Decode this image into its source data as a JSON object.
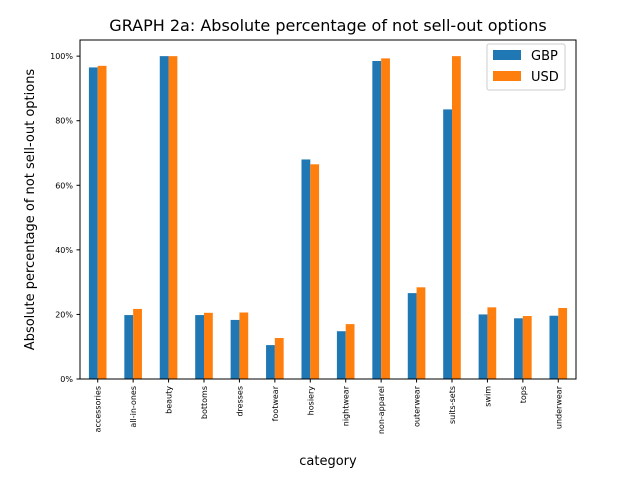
{
  "chart_data": {
    "type": "bar",
    "title": "GRAPH 2a: Absolute percentage of not sell-out options",
    "xlabel": "category",
    "ylabel": "Absolute percentage of not sell-out options",
    "ylim": [
      0,
      1.05
    ],
    "yticks": [
      0,
      0.2,
      0.4,
      0.6,
      0.8,
      1.0
    ],
    "ytick_labels": [
      "0%",
      "20%",
      "40%",
      "60%",
      "80%",
      "100%"
    ],
    "categories": [
      "accessories",
      "all-in-ones",
      "beauty",
      "bottoms",
      "dresses",
      "footwear",
      "hosiery",
      "nightwear",
      "non-apparel",
      "outerwear",
      "suits-sets",
      "swim",
      "tops",
      "underwear"
    ],
    "series": [
      {
        "name": "GBP",
        "color": "#1f77b4",
        "values": [
          0.965,
          0.198,
          1.0,
          0.198,
          0.183,
          0.105,
          0.68,
          0.148,
          0.985,
          0.266,
          0.835,
          0.2,
          0.188,
          0.196
        ]
      },
      {
        "name": "USD",
        "color": "#ff7f0e",
        "values": [
          0.97,
          0.217,
          1.0,
          0.205,
          0.206,
          0.127,
          0.665,
          0.17,
          0.993,
          0.284,
          1.0,
          0.222,
          0.195,
          0.22
        ]
      }
    ],
    "grid": false,
    "legend_position": "top-right"
  }
}
